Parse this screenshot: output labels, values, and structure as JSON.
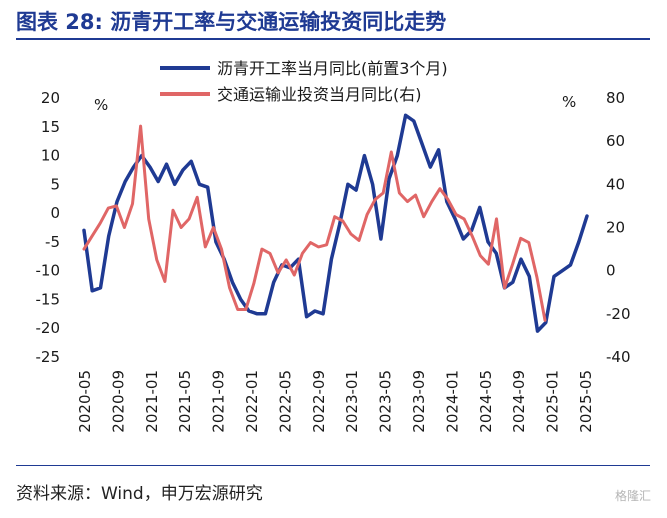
{
  "header": {
    "title": "图表 28: 沥青开工率与交通运输投资同比走势"
  },
  "footer": {
    "source": "资料来源：Wind，申万宏源研究",
    "watermark": "格隆汇"
  },
  "chart_data": {
    "type": "line",
    "title": "图表 28: 沥青开工率与交通运输投资同比走势",
    "left_unit": "%",
    "right_unit": "%",
    "y_left": {
      "min": -25,
      "max": 20,
      "ticks": [
        20,
        15,
        10,
        5,
        0,
        -5,
        -10,
        -15,
        -20,
        -25
      ]
    },
    "y_right": {
      "min": -40,
      "max": 80,
      "ticks": [
        80,
        60,
        40,
        20,
        0,
        -20,
        -40
      ]
    },
    "x_tick_labels": [
      "2020-05",
      "2020-09",
      "2021-01",
      "2021-05",
      "2021-09",
      "2022-01",
      "2022-05",
      "2022-09",
      "2023-01",
      "2023-05",
      "2023-09",
      "2024-01",
      "2024-05",
      "2024-09",
      "2025-01",
      "2025-05"
    ],
    "grid": false,
    "legend_position": "top",
    "series": [
      {
        "name": "沥青开工率当月同比(前置3个月)",
        "axis": "left",
        "color": "#1f3a93",
        "values": [
          -3,
          -13.5,
          -13,
          -4,
          2,
          5.5,
          8,
          10,
          8,
          5.5,
          8.5,
          5,
          7.5,
          9,
          5,
          4.5,
          -5,
          -8,
          -12,
          -15,
          -17,
          -17.5,
          -17.5,
          -12,
          -9,
          -9.5,
          -8,
          -18,
          -17,
          -17.5,
          -8,
          -2,
          5,
          4,
          10,
          5,
          -4.5,
          6,
          10,
          17,
          16,
          12,
          8,
          11,
          2,
          -1,
          -4.5,
          -3,
          1,
          -5,
          -7,
          -13,
          -12,
          -8,
          -11,
          -20.5,
          -19,
          -11,
          -10,
          -9,
          -5,
          -0.5
        ]
      },
      {
        "name": "交通运输业投资当月同比(右)",
        "axis": "right",
        "color": "#e06666",
        "values": [
          10,
          16,
          22,
          29,
          30,
          20,
          31,
          67,
          24,
          5,
          -5,
          28,
          20,
          24,
          34,
          11,
          20,
          10,
          -8,
          -18,
          -18,
          -6,
          10,
          8,
          -1,
          5,
          -2,
          8,
          13,
          11,
          12,
          25,
          23,
          17,
          14,
          26,
          33,
          36,
          55,
          36,
          32,
          35,
          25,
          32,
          38,
          33,
          26,
          24,
          16,
          7,
          3,
          24,
          -8,
          3,
          15,
          13,
          -3,
          -23
        ]
      }
    ]
  }
}
